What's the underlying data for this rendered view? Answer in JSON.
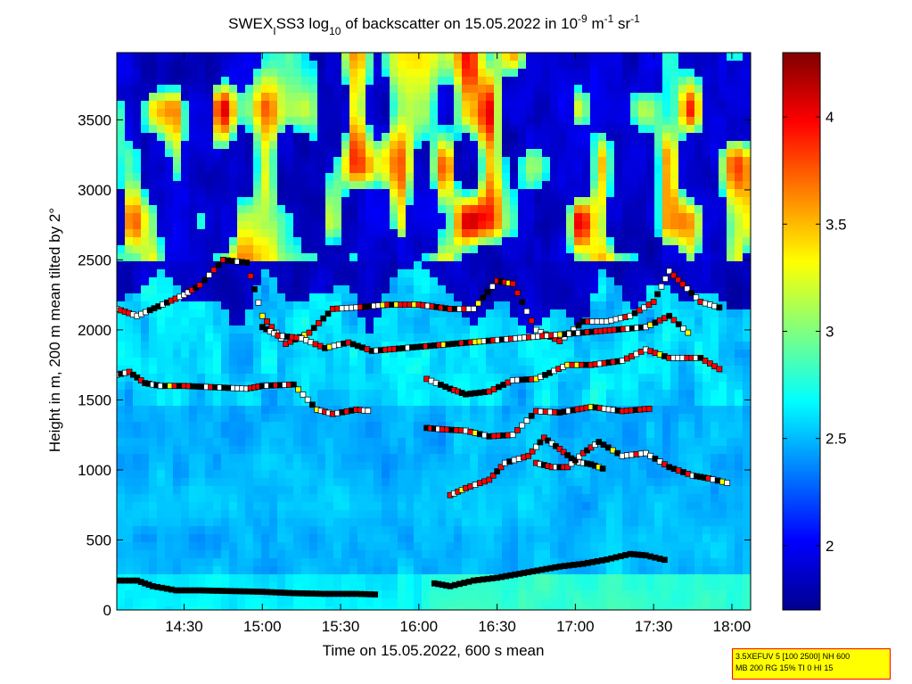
{
  "chart_data": {
    "type": "heatmap",
    "title": {
      "prefix": "SWEX",
      "sub_i": "I",
      "middle": "SS3 log",
      "sub_10": "10",
      "suffix_1": " of backscatter on 15.05.2022 in 10",
      "sup_1": "-9",
      "suffix_2": " m",
      "sup_2": "-1",
      "suffix_3": " sr",
      "sup_3": "-1"
    },
    "xlabel": "Time on 15.05.2022, 600 s mean",
    "ylabel": "Height in m, 200 m mean tilted by 2°",
    "x_range_hours": [
      14.07,
      18.12
    ],
    "y_range_m": [
      0,
      3980
    ],
    "x_ticks": [
      {
        "value": 14.5,
        "label": "14:30"
      },
      {
        "value": 15.0,
        "label": "15:00"
      },
      {
        "value": 15.5,
        "label": "15:30"
      },
      {
        "value": 16.0,
        "label": "16:00"
      },
      {
        "value": 16.5,
        "label": "16:30"
      },
      {
        "value": 17.0,
        "label": "17:00"
      },
      {
        "value": 17.5,
        "label": "17:30"
      },
      {
        "value": 18.0,
        "label": "18:00"
      }
    ],
    "y_ticks": [
      {
        "value": 0,
        "label": "0"
      },
      {
        "value": 500,
        "label": "500"
      },
      {
        "value": 1000,
        "label": "1000"
      },
      {
        "value": 1500,
        "label": "1500"
      },
      {
        "value": 2000,
        "label": "2000"
      },
      {
        "value": 2500,
        "label": "2500"
      },
      {
        "value": 3000,
        "label": "3000"
      },
      {
        "value": 3500,
        "label": "3500"
      }
    ],
    "colorbar": {
      "range": [
        1.7,
        4.3
      ],
      "ticks": [
        {
          "value": 2,
          "label": "2"
        },
        {
          "value": 2.5,
          "label": "2.5"
        },
        {
          "value": 3,
          "label": "3"
        },
        {
          "value": 3.5,
          "label": "3.5"
        },
        {
          "value": 4,
          "label": "4"
        }
      ],
      "colormap": "jet"
    },
    "field": {
      "description_levels": "log10 backscatter",
      "base_low_level": 2.45,
      "surface_level": 2.7
    },
    "layer_markers": [
      {
        "name": "surface-layer",
        "points": [
          [
            14.07,
            210
          ],
          [
            14.2,
            210
          ],
          [
            14.3,
            170
          ],
          [
            14.45,
            140
          ],
          [
            14.6,
            140
          ],
          [
            14.8,
            135
          ],
          [
            15.0,
            130
          ],
          [
            15.2,
            120
          ],
          [
            15.4,
            115
          ],
          [
            15.6,
            115
          ],
          [
            15.75,
            110
          ]
        ]
      },
      {
        "name": "surface-layer-2",
        "points": [
          [
            16.1,
            190
          ],
          [
            16.2,
            170
          ],
          [
            16.35,
            210
          ],
          [
            16.5,
            230
          ],
          [
            16.7,
            270
          ],
          [
            16.9,
            310
          ],
          [
            17.05,
            330
          ],
          [
            17.2,
            360
          ],
          [
            17.35,
            400
          ],
          [
            17.45,
            390
          ],
          [
            17.6,
            350
          ]
        ]
      },
      {
        "name": "mid-layer-1",
        "points": [
          [
            16.2,
            820
          ],
          [
            16.3,
            870
          ],
          [
            16.45,
            930
          ],
          [
            16.55,
            1050
          ],
          [
            16.7,
            1100
          ],
          [
            16.8,
            1230
          ],
          [
            16.9,
            1150
          ],
          [
            17.0,
            1060
          ],
          [
            17.1,
            1040
          ],
          [
            17.2,
            1000
          ]
        ]
      },
      {
        "name": "mid-layer-2",
        "points": [
          [
            16.75,
            1050
          ],
          [
            16.85,
            1020
          ],
          [
            16.95,
            1020
          ],
          [
            17.05,
            1120
          ],
          [
            17.15,
            1200
          ],
          [
            17.3,
            1100
          ],
          [
            17.45,
            1120
          ],
          [
            17.6,
            1020
          ],
          [
            17.75,
            960
          ],
          [
            17.85,
            940
          ],
          [
            18.0,
            900
          ]
        ]
      },
      {
        "name": "mid-layer-3",
        "points": [
          [
            16.05,
            1300
          ],
          [
            16.15,
            1290
          ],
          [
            16.3,
            1280
          ],
          [
            16.45,
            1240
          ],
          [
            16.6,
            1250
          ],
          [
            16.75,
            1420
          ],
          [
            16.9,
            1410
          ],
          [
            17.1,
            1450
          ],
          [
            17.3,
            1420
          ],
          [
            17.5,
            1440
          ]
        ]
      },
      {
        "name": "layer-1600",
        "points": [
          [
            14.07,
            1680
          ],
          [
            14.15,
            1700
          ],
          [
            14.25,
            1620
          ],
          [
            14.35,
            1600
          ],
          [
            14.5,
            1600
          ],
          [
            14.7,
            1590
          ],
          [
            14.9,
            1580
          ],
          [
            15.0,
            1600
          ],
          [
            15.2,
            1610
          ],
          [
            15.35,
            1430
          ],
          [
            15.45,
            1400
          ],
          [
            15.6,
            1430
          ],
          [
            15.7,
            1420
          ]
        ]
      },
      {
        "name": "layer-1700",
        "points": [
          [
            16.05,
            1650
          ],
          [
            16.2,
            1580
          ],
          [
            16.3,
            1540
          ],
          [
            16.45,
            1560
          ],
          [
            16.6,
            1640
          ],
          [
            16.75,
            1650
          ],
          [
            16.95,
            1750
          ],
          [
            17.1,
            1750
          ],
          [
            17.3,
            1780
          ],
          [
            17.45,
            1860
          ],
          [
            17.6,
            1800
          ],
          [
            17.8,
            1800
          ],
          [
            17.95,
            1700
          ]
        ]
      },
      {
        "name": "layer-2000",
        "points": [
          [
            14.07,
            2150
          ],
          [
            14.2,
            2100
          ],
          [
            14.5,
            2250
          ],
          [
            14.6,
            2320
          ],
          [
            14.75,
            2500
          ],
          [
            14.9,
            2480
          ],
          [
            15.0,
            2100
          ],
          [
            15.15,
            1900
          ],
          [
            15.3,
            1980
          ],
          [
            15.45,
            2150
          ],
          [
            15.6,
            2160
          ],
          [
            15.8,
            2180
          ],
          [
            16.0,
            2180
          ],
          [
            16.2,
            2150
          ],
          [
            16.35,
            2150
          ],
          [
            16.5,
            2350
          ],
          [
            16.6,
            2330
          ],
          [
            16.75,
            2000
          ],
          [
            16.9,
            1920
          ],
          [
            17.05,
            2060
          ],
          [
            17.2,
            2060
          ],
          [
            17.35,
            2100
          ],
          [
            17.5,
            2200
          ],
          [
            17.6,
            2420
          ],
          [
            17.8,
            2200
          ],
          [
            17.95,
            2150
          ]
        ]
      },
      {
        "name": "layer-1900",
        "points": [
          [
            15.0,
            2020
          ],
          [
            15.1,
            1960
          ],
          [
            15.25,
            1940
          ],
          [
            15.4,
            1870
          ],
          [
            15.55,
            1910
          ],
          [
            15.7,
            1850
          ],
          [
            17.45,
            2020
          ],
          [
            17.6,
            2100
          ],
          [
            17.75,
            1950
          ]
        ]
      }
    ]
  },
  "info_box": {
    "line1": "3.5XEFUV 5 [100 2500] NH 600",
    "line2": "MB 200 RG 15% TI 0 HI 15"
  }
}
